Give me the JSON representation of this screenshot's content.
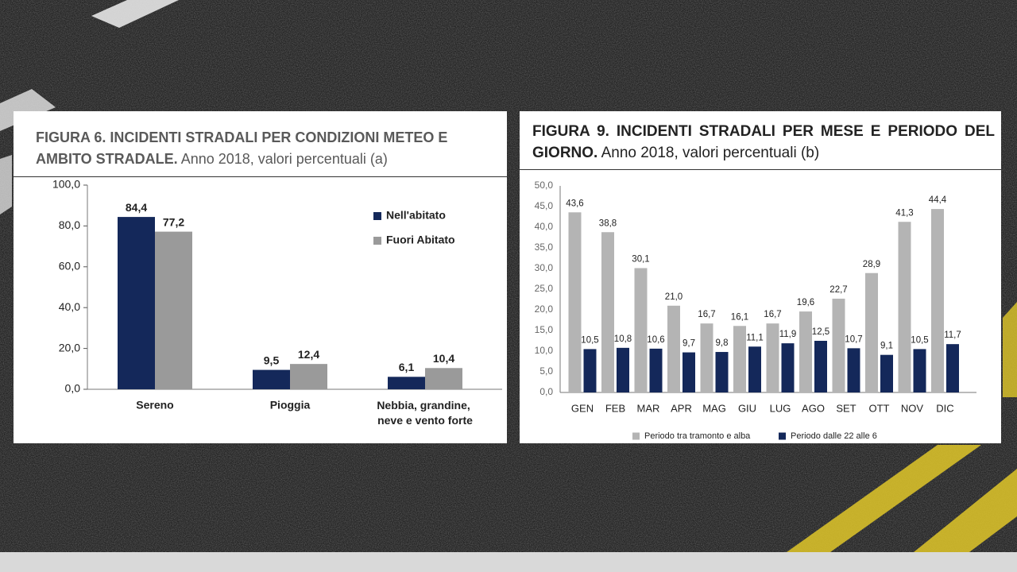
{
  "chart_data": [
    {
      "type": "bar",
      "title": "FIGURA 6. INCIDENTI STRADALI PER CONDIZIONI METEO E AMBITO STRADALE.",
      "subtitle": "Anno 2018, valori percentuali (a)",
      "categories": [
        "Sereno",
        "Pioggia",
        "Nebbia, grandine, neve e vento forte"
      ],
      "series": [
        {
          "name": "Nell'abitato",
          "color": "#14285a",
          "values": [
            84.4,
            9.5,
            6.1
          ],
          "value_labels": [
            "84,4",
            "9,5",
            "6,1"
          ]
        },
        {
          "name": "Fuori Abitato",
          "color": "#9a9a9a",
          "values": [
            77.2,
            12.4,
            10.4
          ],
          "value_labels": [
            "77,2",
            "12,4",
            "10,4"
          ]
        }
      ],
      "ylim": [
        0,
        100
      ],
      "yticks": [
        {
          "value": 0,
          "label": "0,0"
        },
        {
          "value": 20,
          "label": "20,0"
        },
        {
          "value": 40,
          "label": "40,0"
        },
        {
          "value": 60,
          "label": "60,0"
        },
        {
          "value": 80,
          "label": "80,0"
        },
        {
          "value": 100,
          "label": "100,0"
        }
      ],
      "legend": "top-right"
    },
    {
      "type": "bar",
      "title": "FIGURA 9. INCIDENTI STRADALI PER MESE E PERIODO DEL GIORNO.",
      "subtitle": "Anno 2018, valori percentuali (b)",
      "categories": [
        "GEN",
        "FEB",
        "MAR",
        "APR",
        "MAG",
        "GIU",
        "LUG",
        "AGO",
        "SET",
        "OTT",
        "NOV",
        "DIC"
      ],
      "series": [
        {
          "name": "Periodo tra tramonto e alba",
          "color": "#b4b4b4",
          "values": [
            43.6,
            38.8,
            30.1,
            21.0,
            16.7,
            16.1,
            16.7,
            19.6,
            22.7,
            28.9,
            41.3,
            44.4
          ],
          "value_labels": [
            "43,6",
            "38,8",
            "30,1",
            "21,0",
            "16,7",
            "16,1",
            "16,7",
            "19,6",
            "22,7",
            "28,9",
            "41,3",
            "44,4"
          ]
        },
        {
          "name": "Periodo dalle 22 alle 6",
          "color": "#14285a",
          "values": [
            10.5,
            10.8,
            10.6,
            9.7,
            9.8,
            11.1,
            11.9,
            12.5,
            10.7,
            9.1,
            10.5,
            11.7
          ],
          "value_labels": [
            "10,5",
            "10,8",
            "10,6",
            "9,7",
            "9,8",
            "11,1",
            "11,9",
            "12,5",
            "10,7",
            "9,1",
            "10,5",
            "11,7"
          ]
        }
      ],
      "ylim": [
        0,
        50
      ],
      "yticks": [
        {
          "value": 0,
          "label": "0,0"
        },
        {
          "value": 5,
          "label": "5,0"
        },
        {
          "value": 10,
          "label": "10,0"
        },
        {
          "value": 15,
          "label": "15,0"
        },
        {
          "value": 20,
          "label": "20,0"
        },
        {
          "value": 25,
          "label": "25,0"
        },
        {
          "value": 30,
          "label": "30,0"
        },
        {
          "value": 35,
          "label": "35,0"
        },
        {
          "value": 40,
          "label": "40,0"
        },
        {
          "value": 45,
          "label": "45,0"
        },
        {
          "value": 50,
          "label": "50,0"
        }
      ],
      "legend": "bottom"
    }
  ]
}
